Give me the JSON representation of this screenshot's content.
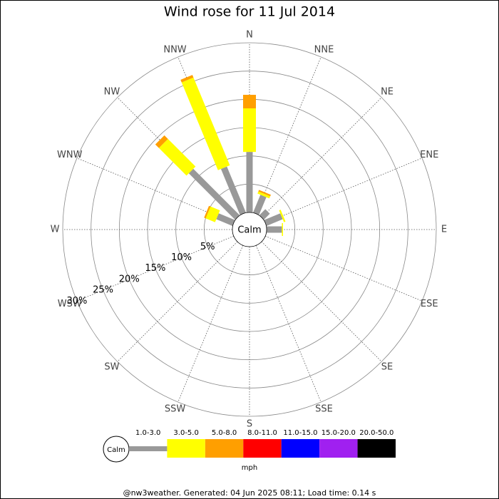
{
  "chart_data": {
    "type": "wind_rose",
    "title": "Wind rose for 11 Jul 2014",
    "directions": [
      "N",
      "NNE",
      "NE",
      "ENE",
      "E",
      "ESE",
      "SE",
      "SSE",
      "S",
      "SSW",
      "SW",
      "WSW",
      "W",
      "WNW",
      "NW",
      "NNW"
    ],
    "calm_label": "Calm",
    "legend_title": "mph",
    "footer": "@nw3weather. Generated: 04 Jun 2025 08:11; Load time: 0.14 s",
    "rlim": [
      0,
      30
    ],
    "rticks": [
      {
        "value": 5,
        "label": "5%"
      },
      {
        "value": 10,
        "label": "10%"
      },
      {
        "value": 15,
        "label": "15%"
      },
      {
        "value": 20,
        "label": "20%"
      },
      {
        "value": 25,
        "label": "25%"
      },
      {
        "value": 30,
        "label": "30%"
      }
    ],
    "series": [
      {
        "name": "1.0-3.0",
        "color": "#999999",
        "values": [
          10.7,
          3.4,
          1.5,
          3.1,
          2.7,
          0,
          0,
          0,
          0,
          0,
          0,
          0,
          0,
          3.1,
          11.6,
          8.8
        ]
      },
      {
        "name": "3.0-5.0",
        "color": "#ffff00",
        "values": [
          7.7,
          0.4,
          0,
          0.3,
          0.2,
          0,
          0,
          0,
          0,
          0,
          0,
          0,
          0,
          1.8,
          6.9,
          16.8
        ]
      },
      {
        "name": "5.0-8.0",
        "color": "#ff9f00",
        "values": [
          2.4,
          0.3,
          0,
          0,
          0,
          0,
          0,
          0,
          0,
          0,
          0,
          0,
          0,
          0.3,
          0.9,
          0.5
        ]
      },
      {
        "name": "8.0-11.0",
        "color": "#ff0000",
        "values": [
          0,
          0,
          0,
          0,
          0,
          0,
          0,
          0,
          0,
          0,
          0,
          0,
          0,
          0,
          0,
          0
        ]
      },
      {
        "name": "11.0-15.0",
        "color": "#0000ff",
        "values": [
          0,
          0,
          0,
          0,
          0,
          0,
          0,
          0,
          0,
          0,
          0,
          0,
          0,
          0,
          0,
          0
        ]
      },
      {
        "name": "15.0-20.0",
        "color": "#a020f0",
        "values": [
          0,
          0,
          0,
          0,
          0,
          0,
          0,
          0,
          0,
          0,
          0,
          0,
          0,
          0,
          0,
          0
        ]
      },
      {
        "name": "20.0-50.0",
        "color": "#000000",
        "values": [
          0,
          0,
          0,
          0,
          0,
          0,
          0,
          0,
          0,
          0,
          0,
          0,
          0,
          0,
          0,
          0
        ]
      }
    ]
  }
}
